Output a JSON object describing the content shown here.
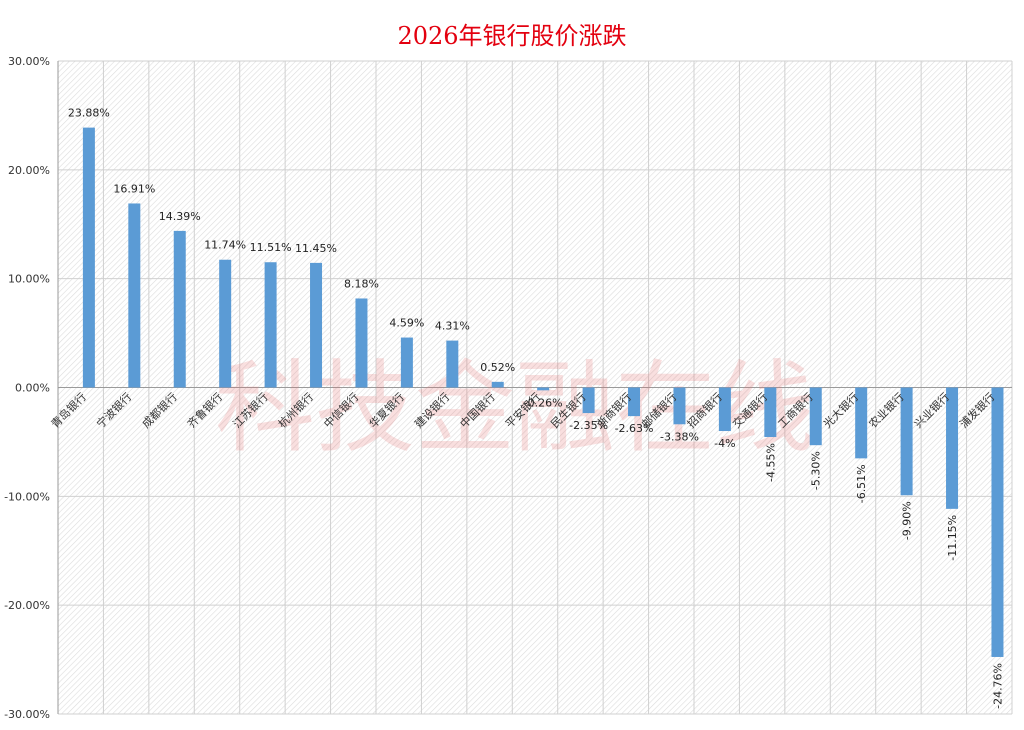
{
  "chart_data": {
    "type": "bar",
    "title": "2026年银行股价涨跌",
    "xlabel": "",
    "ylabel": "",
    "ylim": [
      -0.3,
      0.3
    ],
    "yticks": [
      "-30.00%",
      "-20.00%",
      "-10.00%",
      "0.00%",
      "10.00%",
      "20.00%",
      "30.00%"
    ],
    "categories": [
      "青岛银行",
      "宁波银行",
      "成都银行",
      "齐鲁银行",
      "江苏银行",
      "杭州银行",
      "中信银行",
      "华夏银行",
      "建设银行",
      "中国银行",
      "平安银行",
      "民生银行",
      "浙商银行",
      "邮储银行",
      "招商银行",
      "交通银行",
      "工商银行",
      "光大银行",
      "农业银行",
      "兴业银行",
      "浦发银行"
    ],
    "values": [
      0.2388,
      0.1691,
      0.1439,
      0.1174,
      0.1151,
      0.1145,
      0.0818,
      0.0459,
      0.0431,
      0.0052,
      -0.0026,
      -0.0235,
      -0.0263,
      -0.0338,
      -0.04,
      -0.0455,
      -0.053,
      -0.0651,
      -0.099,
      -0.1115,
      -0.2476
    ],
    "data_labels": [
      "23.88%",
      "16.91%",
      "14.39%",
      "11.74%",
      "11.51%",
      "11.45%",
      "8.18%",
      "4.59%",
      "4.31%",
      "0.52%",
      "-0.26%",
      "-2.35%",
      "-2.63%",
      "-3.38%",
      "-4%",
      "-4.55%",
      "-5.30%",
      "-6.51%",
      "-9.90%",
      "-11.15%",
      "-24.76%"
    ],
    "bar_color": "#5b9bd5",
    "title_color": "#e3000f",
    "grid": true,
    "legend": "none",
    "watermark": "科技金融在线"
  }
}
